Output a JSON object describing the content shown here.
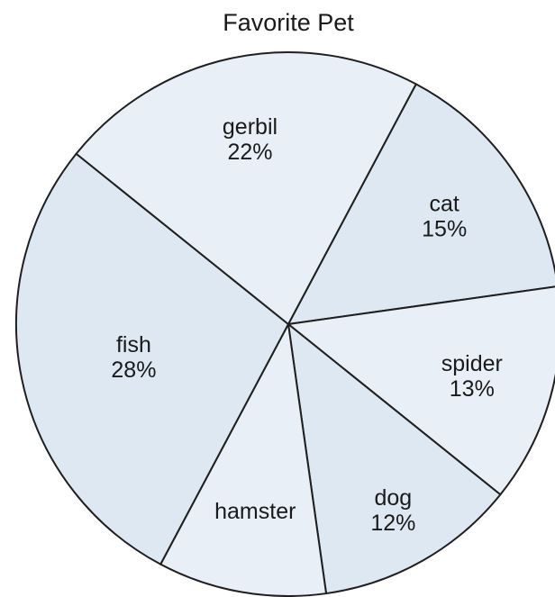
{
  "chart_data": {
    "type": "pie",
    "title": "Favorite Pet",
    "slices": [
      {
        "label": "cat",
        "value": 15,
        "value_label": "15%",
        "color": "#dde8f2"
      },
      {
        "label": "spider",
        "value": 13,
        "value_label": "13%",
        "color": "#e9eff6"
      },
      {
        "label": "dog",
        "value": 12,
        "value_label": "12%",
        "color": "#dde8f2"
      },
      {
        "label": "hamster",
        "value": 10,
        "value_label": "",
        "color": "#e9eff6"
      },
      {
        "label": "fish",
        "value": 28,
        "value_label": "28%",
        "color": "#dde8f2"
      },
      {
        "label": "gerbil",
        "value": 22,
        "value_label": "22%",
        "color": "#e9eff6"
      }
    ],
    "start_angle_deg": -62,
    "outline_color": "#1f1f1f",
    "legend": "none"
  }
}
